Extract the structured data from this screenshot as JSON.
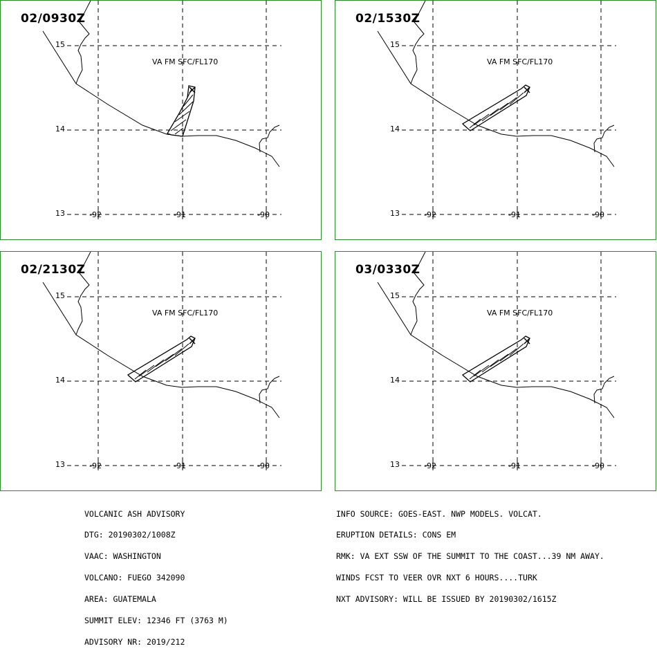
{
  "panels": [
    {
      "time": "02/0930Z",
      "va_label": "VA FM SFC/FL170",
      "plume": "north"
    },
    {
      "time": "02/1530Z",
      "va_label": "VA FM SFC/FL170",
      "plume": "southwest"
    },
    {
      "time": "02/2130Z",
      "va_label": "VA FM SFC/FL170",
      "plume": "southwest"
    },
    {
      "time": "03/0330Z",
      "va_label": "VA FM SFC/FL170",
      "plume": "southwest"
    }
  ],
  "axes": {
    "lat_labels": [
      "15",
      "14",
      "13"
    ],
    "lon_labels": [
      "-92",
      "-91",
      "-90"
    ]
  },
  "advisory_left": [
    "VOLCANIC ASH ADVISORY",
    "DTG: 20190302/1008Z",
    "VAAC: WASHINGTON",
    "VOLCANO: FUEGO 342090",
    "AREA: GUATEMALA",
    "SUMMIT ELEV: 12346 FT (3763 M)",
    "ADVISORY NR: 2019/212"
  ],
  "advisory_right": [
    "INFO SOURCE: GOES-EAST. NWP MODELS. VOLCAT.",
    "ERUPTION DETAILS: CONS EM",
    "RMK: VA EXT SSW OF THE SUMMIT TO THE COAST...39 NM AWAY.",
    "WINDS FCST TO VEER OVR NXT 6 HOURS....TURK",
    "NXT ADVISORY: WILL BE ISSUED BY 20190302/1615Z"
  ],
  "colors": {
    "frame": "#2a8a2a",
    "lines": "#000000"
  }
}
